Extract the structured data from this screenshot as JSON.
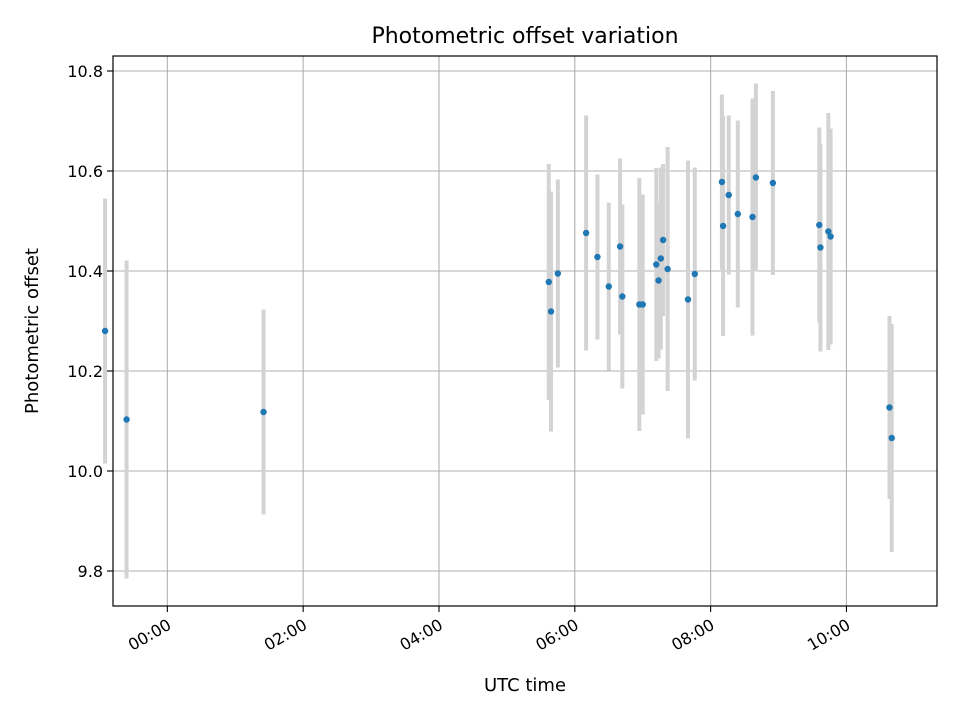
{
  "chart_data": {
    "type": "scatter",
    "title": "Photometric offset variation",
    "xlabel": "UTC time",
    "ylabel": "Photometric offset",
    "x_axis_kind": "time",
    "xlim": [
      "2000-01-01T23:12",
      "2000-01-02T11:20"
    ],
    "ylim": [
      9.73,
      10.83
    ],
    "xticks": [
      {
        "t": "2000-01-02T00:00",
        "label": "00:00"
      },
      {
        "t": "2000-01-02T02:00",
        "label": "02:00"
      },
      {
        "t": "2000-01-02T04:00",
        "label": "04:00"
      },
      {
        "t": "2000-01-02T06:00",
        "label": "06:00"
      },
      {
        "t": "2000-01-02T08:00",
        "label": "08:00"
      },
      {
        "t": "2000-01-02T10:00",
        "label": "10:00"
      }
    ],
    "yticks": [
      9.8,
      10.0,
      10.2,
      10.4,
      10.6,
      10.8
    ],
    "grid": true,
    "colors": {
      "marker": "#1f77b4",
      "errorbar": "#d3d3d3",
      "grid": "#b0b0b0"
    },
    "points": [
      {
        "t": "2000-01-01T23:05",
        "y": 10.28,
        "err": 0.265
      },
      {
        "t": "2000-01-01T23:24",
        "y": 10.103,
        "err": 0.318
      },
      {
        "t": "2000-01-02T01:25",
        "y": 10.118,
        "err": 0.205
      },
      {
        "t": "2000-01-02T05:37",
        "y": 10.378,
        "err": 0.236
      },
      {
        "t": "2000-01-02T05:39",
        "y": 10.319,
        "err": 0.24
      },
      {
        "t": "2000-01-02T05:45",
        "y": 10.395,
        "err": 0.188
      },
      {
        "t": "2000-01-02T06:10",
        "y": 10.476,
        "err": 0.235
      },
      {
        "t": "2000-01-02T06:20",
        "y": 10.428,
        "err": 0.165
      },
      {
        "t": "2000-01-02T06:30",
        "y": 10.369,
        "err": 0.168
      },
      {
        "t": "2000-01-02T06:40",
        "y": 10.449,
        "err": 0.176
      },
      {
        "t": "2000-01-02T06:42",
        "y": 10.349,
        "err": 0.184
      },
      {
        "t": "2000-01-02T06:57",
        "y": 10.333,
        "err": 0.253
      },
      {
        "t": "2000-01-02T07:00",
        "y": 10.333,
        "err": 0.22
      },
      {
        "t": "2000-01-02T07:12",
        "y": 10.413,
        "err": 0.193
      },
      {
        "t": "2000-01-02T07:14",
        "y": 10.381,
        "err": 0.156
      },
      {
        "t": "2000-01-02T07:16",
        "y": 10.425,
        "err": 0.182
      },
      {
        "t": "2000-01-02T07:18",
        "y": 10.462,
        "err": 0.152
      },
      {
        "t": "2000-01-02T07:22",
        "y": 10.404,
        "err": 0.244
      },
      {
        "t": "2000-01-02T07:40",
        "y": 10.343,
        "err": 0.278
      },
      {
        "t": "2000-01-02T07:46",
        "y": 10.394,
        "err": 0.213
      },
      {
        "t": "2000-01-02T08:10",
        "y": 10.578,
        "err": 0.175
      },
      {
        "t": "2000-01-02T08:11",
        "y": 10.49,
        "err": 0.22
      },
      {
        "t": "2000-01-02T08:16",
        "y": 10.552,
        "err": 0.159
      },
      {
        "t": "2000-01-02T08:24",
        "y": 10.514,
        "err": 0.187
      },
      {
        "t": "2000-01-02T08:37",
        "y": 10.508,
        "err": 0.237
      },
      {
        "t": "2000-01-02T08:40",
        "y": 10.587,
        "err": 0.188
      },
      {
        "t": "2000-01-02T08:55",
        "y": 10.576,
        "err": 0.184
      },
      {
        "t": "2000-01-02T09:36",
        "y": 10.492,
        "err": 0.195
      },
      {
        "t": "2000-01-02T09:37",
        "y": 10.447,
        "err": 0.208
      },
      {
        "t": "2000-01-02T09:44",
        "y": 10.479,
        "err": 0.237
      },
      {
        "t": "2000-01-02T09:46",
        "y": 10.469,
        "err": 0.216
      },
      {
        "t": "2000-01-02T10:38",
        "y": 10.127,
        "err": 0.183
      },
      {
        "t": "2000-01-02T10:40",
        "y": 10.066,
        "err": 0.228
      }
    ]
  }
}
